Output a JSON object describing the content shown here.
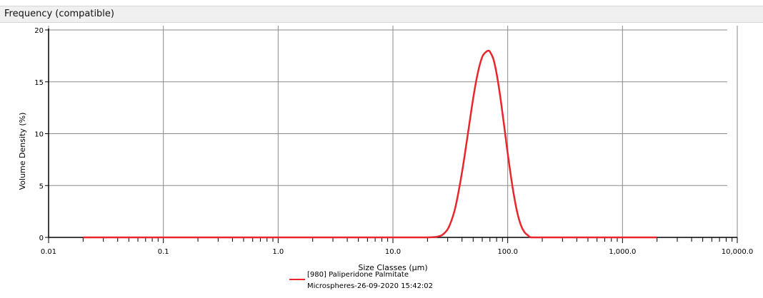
{
  "panel": {
    "title": "Frequency (compatible)"
  },
  "chart_data": {
    "type": "line",
    "title": "",
    "xlabel": "Size Classes (μm)",
    "ylabel": "Volume Density (%)",
    "x_scale": "log",
    "xlim": [
      0.01,
      10000
    ],
    "ylim": [
      0,
      20
    ],
    "x_ticks": [
      0.01,
      0.1,
      1.0,
      10.0,
      100.0,
      1000.0,
      10000.0
    ],
    "x_tick_labels": [
      "0.01",
      "0.1",
      "1.0",
      "10.0",
      "100.0",
      "1,000.0",
      "10,000.0"
    ],
    "y_ticks": [
      0,
      5,
      10,
      15,
      20
    ],
    "y_tick_labels": [
      "0",
      "5",
      "10",
      "15",
      "20"
    ],
    "grid": true,
    "legend_position": "bottom-center",
    "colors": {
      "series": "#e8262b",
      "grid": "#8a8a8a",
      "axis": "#000000"
    },
    "series": [
      {
        "name": "[980] Paliperidone Palmitate Microspheres-26-09-2020 15:42:02",
        "name_lines": [
          "[980] Paliperidone Palmitate",
          "Microspheres-26-09-2020 15:42:02"
        ],
        "x": [
          0.02,
          0.1,
          1,
          10,
          20,
          25,
          28,
          31,
          35,
          40,
          45,
          50,
          55,
          60,
          65,
          68,
          70,
          75,
          80,
          85,
          90,
          95,
          100,
          110,
          120,
          130,
          140,
          150,
          160,
          200,
          500,
          1000,
          2000
        ],
        "y": [
          0,
          0,
          0,
          0,
          0,
          0.1,
          0.4,
          1.1,
          2.9,
          6.3,
          10.0,
          13.4,
          15.9,
          17.4,
          17.9,
          18.0,
          17.9,
          17.2,
          15.8,
          14.0,
          12.0,
          10.0,
          8.1,
          4.9,
          2.6,
          1.2,
          0.5,
          0.2,
          0,
          0,
          0,
          0,
          0
        ]
      }
    ]
  }
}
